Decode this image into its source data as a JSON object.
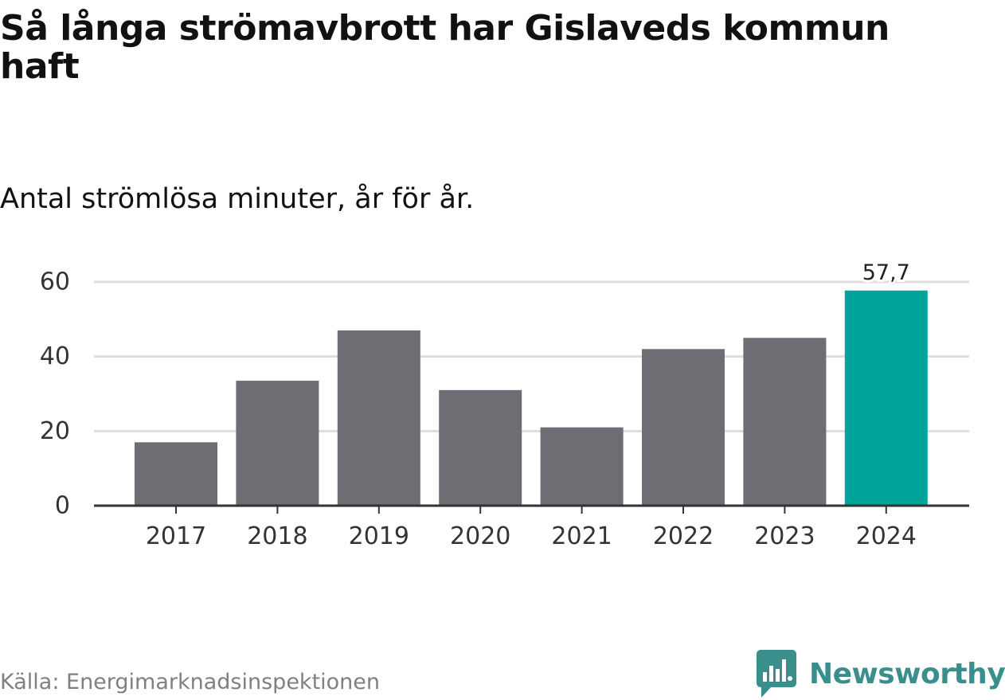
{
  "title": "Så långa strömavbrott har Gislaveds kommun haft",
  "subtitle": "Antal strömlösa minuter, år för år.",
  "source": "Källa: Energimarknadsinspektionen",
  "brand": {
    "name": "Newsworthy",
    "logo_icon": "bar-chart-speech-bubble-icon",
    "color": "#3a8f8c"
  },
  "colors": {
    "bar_default": "#6e6d73",
    "bar_highlight": "#00a49a",
    "grid": "#dddddd",
    "axis": "#333333",
    "text": "#333333"
  },
  "chart_data": {
    "type": "bar",
    "title": "Så långa strömavbrott har Gislaveds kommun haft",
    "subtitle": "Antal strömlösa minuter, år för år.",
    "xlabel": "",
    "ylabel": "",
    "categories": [
      "2017",
      "2018",
      "2019",
      "2020",
      "2021",
      "2022",
      "2023",
      "2024"
    ],
    "values": [
      17,
      33.5,
      47,
      31,
      21,
      42,
      45,
      57.7
    ],
    "highlight_index": 7,
    "data_labels": [
      {
        "index": 7,
        "text": "57,7"
      }
    ],
    "yticks": [
      0,
      20,
      40,
      60
    ],
    "ytick_labels": [
      "0",
      "20",
      "40",
      "60"
    ],
    "ylim": [
      0,
      60
    ],
    "grid": true,
    "legend": "none"
  }
}
